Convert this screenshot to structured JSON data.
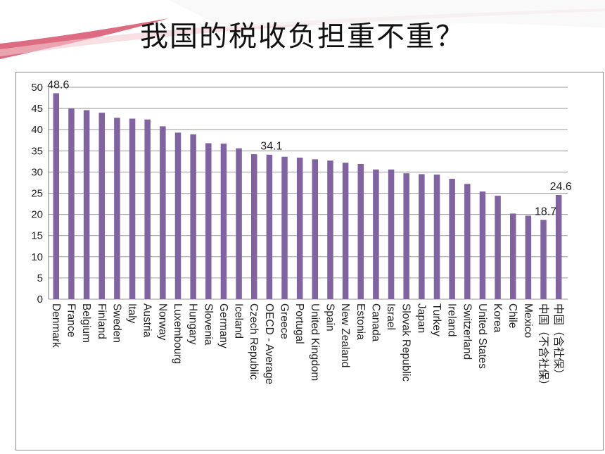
{
  "slide": {
    "title": "我国的税收负担重不重？"
  },
  "colors": {
    "bar": "#8064a2",
    "ribbon": "#d95b73",
    "grid": "#9a9a9a"
  },
  "chart_data": {
    "type": "bar",
    "title": "",
    "xlabel": "",
    "ylabel": "",
    "ylim": [
      0,
      50
    ],
    "yticks": [
      0,
      5,
      10,
      15,
      20,
      25,
      30,
      35,
      40,
      45,
      50
    ],
    "grid": true,
    "categories": [
      "Denmark",
      "France",
      "Belgium",
      "Finland",
      "Sweden",
      "Italy",
      "Austria",
      "Norway",
      "Luxembourg",
      "Hungary",
      "Slovenia",
      "Germany",
      "Iceland",
      "Czech Republic",
      "OECD - Average",
      "Greece",
      "Portugal",
      "United Kingdom",
      "Spain",
      "New Zealand",
      "Estonia",
      "Canada",
      "Israel",
      "Slovak Republic",
      "Japan",
      "Turkey",
      "Ireland",
      "Switzerland",
      "United States",
      "Korea",
      "Chile",
      "Mexico",
      "中国（不含社保）",
      "中国（含社保）"
    ],
    "values": [
      48.6,
      45.0,
      44.6,
      44.0,
      42.8,
      42.6,
      42.4,
      40.8,
      39.3,
      38.9,
      36.8,
      36.7,
      35.6,
      34.2,
      34.1,
      33.6,
      33.4,
      33.0,
      32.7,
      32.2,
      31.9,
      30.6,
      30.6,
      29.7,
      29.5,
      29.4,
      28.4,
      27.2,
      25.4,
      24.4,
      20.2,
      19.7,
      18.7,
      24.6
    ],
    "data_labels": [
      {
        "index": 0,
        "text": "48.6"
      },
      {
        "index": 14,
        "text": "34.1"
      },
      {
        "index": 32,
        "text": "18.7"
      },
      {
        "index": 33,
        "text": "24.6"
      }
    ]
  }
}
